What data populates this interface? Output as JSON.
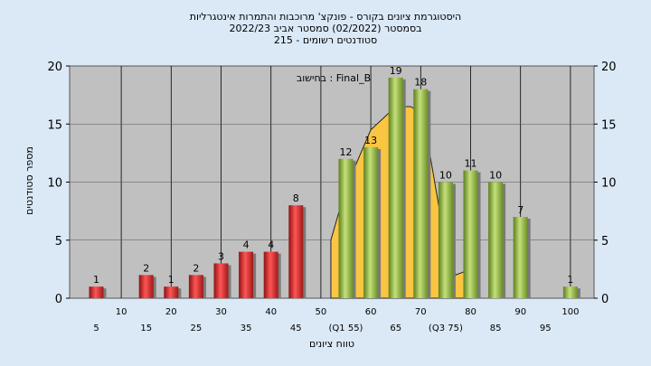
{
  "chart_data": {
    "type": "bar",
    "title_lines": [
      "היסטוגרמת ציונים בקורס - פונקצ' מרוכבות והתמרות אינטגרליות",
      "בסמסטר  (02/2022)  סמסטר אביב 2022/23",
      "סטודנטים רשומים - 215"
    ],
    "legend_text": "בחישוב : Final_B",
    "ylabel": "מספר סטודנטים",
    "xlabel": "טווח ציונים",
    "ylim": [
      0,
      20
    ],
    "yticks": [
      0,
      5,
      10,
      15,
      20
    ],
    "x": [
      5,
      15,
      20,
      25,
      30,
      35,
      40,
      45,
      55,
      60,
      65,
      70,
      75,
      80,
      85,
      90,
      100
    ],
    "values": [
      1,
      2,
      1,
      2,
      3,
      4,
      4,
      8,
      12,
      13,
      19,
      18,
      10,
      11,
      10,
      7,
      1
    ],
    "value_labels": [
      "1",
      "2",
      "1",
      "2",
      "3",
      "4",
      "4",
      "8",
      "12",
      "13",
      "19",
      "18",
      "10",
      "11",
      "10",
      "7",
      "1"
    ],
    "bar_colors": [
      "red",
      "red",
      "red",
      "red",
      "red",
      "red",
      "red",
      "red",
      "green",
      "green",
      "green",
      "green",
      "green",
      "green",
      "green",
      "green",
      "green"
    ],
    "xticks_upper": [
      "10",
      "20",
      "30",
      "40",
      "50",
      "60",
      "70",
      "80",
      "90",
      "100"
    ],
    "xticks_upper_vals": [
      10,
      20,
      30,
      40,
      50,
      60,
      70,
      80,
      90,
      100
    ],
    "xticks_lower": [
      "5",
      "15",
      "25",
      "35",
      "45",
      "(Q1 55)",
      "65",
      "(Q3 75)",
      "85",
      "95"
    ],
    "xticks_lower_vals": [
      5,
      15,
      25,
      35,
      45,
      55,
      65,
      75,
      85,
      95
    ],
    "curve": {
      "x": [
        52,
        55,
        60,
        65,
        68,
        70,
        72,
        74,
        77,
        80
      ],
      "y": [
        5,
        9.5,
        14.5,
        16.5,
        16.5,
        16,
        12,
        7,
        2,
        2.5
      ]
    },
    "colors": {
      "red": "#e23030",
      "green": "#8fb43c",
      "curve": "#f9c542",
      "plot_bg": "#c0c0c0",
      "page_bg": "#dbe9f7"
    },
    "grid": true
  }
}
